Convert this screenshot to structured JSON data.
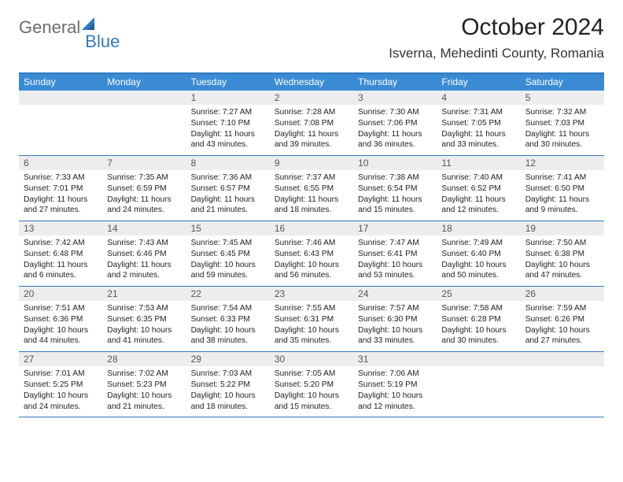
{
  "logo": {
    "part1": "General",
    "part2": "Blue"
  },
  "title": "October 2024",
  "location": "Isverna, Mehedinti County, Romania",
  "colors": {
    "accent": "#2f7ac0",
    "header_bg": "#3b8bd4",
    "daynum_bg": "#ededed",
    "text": "#222222",
    "logo_gray": "#6b6b6b"
  },
  "dayNames": [
    "Sunday",
    "Monday",
    "Tuesday",
    "Wednesday",
    "Thursday",
    "Friday",
    "Saturday"
  ],
  "weeks": [
    [
      null,
      null,
      {
        "n": "1",
        "sr": "7:27 AM",
        "ss": "7:10 PM",
        "dl": "11 hours and 43 minutes."
      },
      {
        "n": "2",
        "sr": "7:28 AM",
        "ss": "7:08 PM",
        "dl": "11 hours and 39 minutes."
      },
      {
        "n": "3",
        "sr": "7:30 AM",
        "ss": "7:06 PM",
        "dl": "11 hours and 36 minutes."
      },
      {
        "n": "4",
        "sr": "7:31 AM",
        "ss": "7:05 PM",
        "dl": "11 hours and 33 minutes."
      },
      {
        "n": "5",
        "sr": "7:32 AM",
        "ss": "7:03 PM",
        "dl": "11 hours and 30 minutes."
      }
    ],
    [
      {
        "n": "6",
        "sr": "7:33 AM",
        "ss": "7:01 PM",
        "dl": "11 hours and 27 minutes."
      },
      {
        "n": "7",
        "sr": "7:35 AM",
        "ss": "6:59 PM",
        "dl": "11 hours and 24 minutes."
      },
      {
        "n": "8",
        "sr": "7:36 AM",
        "ss": "6:57 PM",
        "dl": "11 hours and 21 minutes."
      },
      {
        "n": "9",
        "sr": "7:37 AM",
        "ss": "6:55 PM",
        "dl": "11 hours and 18 minutes."
      },
      {
        "n": "10",
        "sr": "7:38 AM",
        "ss": "6:54 PM",
        "dl": "11 hours and 15 minutes."
      },
      {
        "n": "11",
        "sr": "7:40 AM",
        "ss": "6:52 PM",
        "dl": "11 hours and 12 minutes."
      },
      {
        "n": "12",
        "sr": "7:41 AM",
        "ss": "6:50 PM",
        "dl": "11 hours and 9 minutes."
      }
    ],
    [
      {
        "n": "13",
        "sr": "7:42 AM",
        "ss": "6:48 PM",
        "dl": "11 hours and 6 minutes."
      },
      {
        "n": "14",
        "sr": "7:43 AM",
        "ss": "6:46 PM",
        "dl": "11 hours and 2 minutes."
      },
      {
        "n": "15",
        "sr": "7:45 AM",
        "ss": "6:45 PM",
        "dl": "10 hours and 59 minutes."
      },
      {
        "n": "16",
        "sr": "7:46 AM",
        "ss": "6:43 PM",
        "dl": "10 hours and 56 minutes."
      },
      {
        "n": "17",
        "sr": "7:47 AM",
        "ss": "6:41 PM",
        "dl": "10 hours and 53 minutes."
      },
      {
        "n": "18",
        "sr": "7:49 AM",
        "ss": "6:40 PM",
        "dl": "10 hours and 50 minutes."
      },
      {
        "n": "19",
        "sr": "7:50 AM",
        "ss": "6:38 PM",
        "dl": "10 hours and 47 minutes."
      }
    ],
    [
      {
        "n": "20",
        "sr": "7:51 AM",
        "ss": "6:36 PM",
        "dl": "10 hours and 44 minutes."
      },
      {
        "n": "21",
        "sr": "7:53 AM",
        "ss": "6:35 PM",
        "dl": "10 hours and 41 minutes."
      },
      {
        "n": "22",
        "sr": "7:54 AM",
        "ss": "6:33 PM",
        "dl": "10 hours and 38 minutes."
      },
      {
        "n": "23",
        "sr": "7:55 AM",
        "ss": "6:31 PM",
        "dl": "10 hours and 35 minutes."
      },
      {
        "n": "24",
        "sr": "7:57 AM",
        "ss": "6:30 PM",
        "dl": "10 hours and 33 minutes."
      },
      {
        "n": "25",
        "sr": "7:58 AM",
        "ss": "6:28 PM",
        "dl": "10 hours and 30 minutes."
      },
      {
        "n": "26",
        "sr": "7:59 AM",
        "ss": "6:26 PM",
        "dl": "10 hours and 27 minutes."
      }
    ],
    [
      {
        "n": "27",
        "sr": "7:01 AM",
        "ss": "5:25 PM",
        "dl": "10 hours and 24 minutes."
      },
      {
        "n": "28",
        "sr": "7:02 AM",
        "ss": "5:23 PM",
        "dl": "10 hours and 21 minutes."
      },
      {
        "n": "29",
        "sr": "7:03 AM",
        "ss": "5:22 PM",
        "dl": "10 hours and 18 minutes."
      },
      {
        "n": "30",
        "sr": "7:05 AM",
        "ss": "5:20 PM",
        "dl": "10 hours and 15 minutes."
      },
      {
        "n": "31",
        "sr": "7:06 AM",
        "ss": "5:19 PM",
        "dl": "10 hours and 12 minutes."
      },
      null,
      null
    ]
  ],
  "labels": {
    "sunrise": "Sunrise:",
    "sunset": "Sunset:",
    "daylight": "Daylight:"
  }
}
